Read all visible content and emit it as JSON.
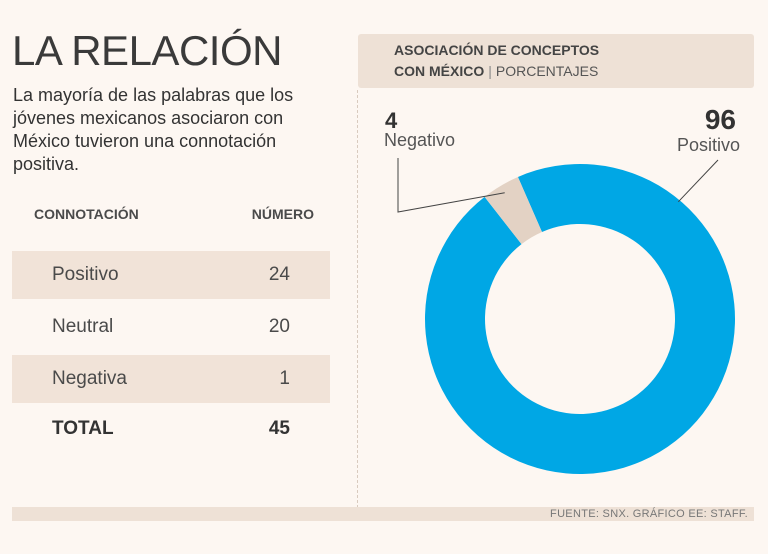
{
  "header": {
    "title": "LA RELACIÓN",
    "lede": "La mayoría de las palabras que los jóvenes mexicanos asociaron con México tuvieron una connotación positiva."
  },
  "table": {
    "col_label": "CONNOTACIÓN",
    "col_value": "NÚMERO",
    "rows": [
      {
        "label": "Positivo",
        "value": "24"
      },
      {
        "label": "Neutral",
        "value": "20"
      },
      {
        "label": "Negativa",
        "value": "1"
      }
    ],
    "total": {
      "label": "TOTAL",
      "value": "45"
    }
  },
  "panel": {
    "title_line1": "ASOCIACIÓN DE CONCEPTOS",
    "title_line2": "CON MÉXICO",
    "unit": "PORCENTAJES"
  },
  "chart_data": {
    "type": "pie",
    "donut": true,
    "title": "ASOCIACIÓN DE CONCEPTOS CON MÉXICO",
    "unit": "PORCENTAJES",
    "slices": [
      {
        "label": "Positivo",
        "value": 96,
        "color": "#00a7e5"
      },
      {
        "label": "Negativo",
        "value": 4,
        "color": "#e3d2c4"
      }
    ]
  },
  "footer": {
    "source": "FUENTE: SNX. GRÁFICO EE: STAFF."
  }
}
